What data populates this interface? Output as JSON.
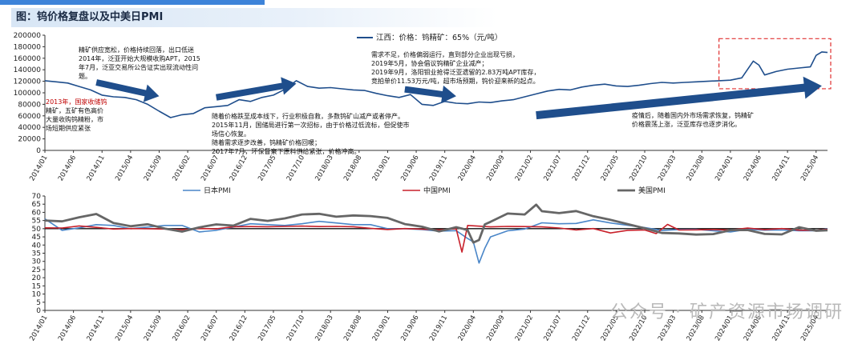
{
  "figure_title": "图：钨价格复盘以及中美日PMI",
  "watermark": "公众号 · 矿产资源市场调研",
  "chart_data": [
    {
      "type": "line",
      "legend": "江西：价格：钨精矿：65%（元/吨）",
      "legend_placement": "top-center",
      "ylim": [
        0,
        200000
      ],
      "yticks": [
        0,
        20000,
        40000,
        60000,
        80000,
        100000,
        120000,
        140000,
        160000,
        180000,
        200000
      ],
      "xticks": [
        "2014/01",
        "2014/06",
        "2014/11",
        "2015/04",
        "2015/09",
        "2016/02",
        "2016/07",
        "2016/12",
        "2017/05",
        "2017/10",
        "2018/03",
        "2018/08",
        "2019/01",
        "2019/06",
        "2019/11",
        "2020/04",
        "2020/09",
        "2021/02",
        "2021/07",
        "2021/12",
        "2022/05",
        "2022/10",
        "2023/03",
        "2023/08",
        "2024/01",
        "2024/06",
        "2024/11",
        "2025/04"
      ],
      "color": "#1f4e8c",
      "points": [
        [
          "2014/01",
          121000
        ],
        [
          "2014/03",
          119000
        ],
        [
          "2014/05",
          117000
        ],
        [
          "2014/07",
          111000
        ],
        [
          "2014/09",
          105000
        ],
        [
          "2014/11",
          96000
        ],
        [
          "2015/01",
          93000
        ],
        [
          "2015/03",
          92000
        ],
        [
          "2015/05",
          88000
        ],
        [
          "2015/07",
          80000
        ],
        [
          "2015/09",
          68000
        ],
        [
          "2015/11",
          57000
        ],
        [
          "2016/01",
          62000
        ],
        [
          "2016/03",
          64000
        ],
        [
          "2016/05",
          74000
        ],
        [
          "2016/07",
          76000
        ],
        [
          "2016/09",
          78000
        ],
        [
          "2016/11",
          88000
        ],
        [
          "2017/01",
          85000
        ],
        [
          "2017/03",
          92000
        ],
        [
          "2017/05",
          96000
        ],
        [
          "2017/07",
          106000
        ],
        [
          "2017/09",
          121000
        ],
        [
          "2017/11",
          111000
        ],
        [
          "2018/01",
          108000
        ],
        [
          "2018/03",
          109000
        ],
        [
          "2018/05",
          107000
        ],
        [
          "2018/07",
          105000
        ],
        [
          "2018/09",
          104000
        ],
        [
          "2018/11",
          99000
        ],
        [
          "2019/01",
          95000
        ],
        [
          "2019/03",
          92000
        ],
        [
          "2019/05",
          97000
        ],
        [
          "2019/07",
          80000
        ],
        [
          "2019/09",
          78000
        ],
        [
          "2019/11",
          85000
        ],
        [
          "2020/01",
          82000
        ],
        [
          "2020/03",
          81000
        ],
        [
          "2020/05",
          84000
        ],
        [
          "2020/07",
          83000
        ],
        [
          "2020/09",
          86000
        ],
        [
          "2020/11",
          88000
        ],
        [
          "2021/01",
          93000
        ],
        [
          "2021/03",
          98000
        ],
        [
          "2021/05",
          103000
        ],
        [
          "2021/07",
          106000
        ],
        [
          "2021/09",
          105000
        ],
        [
          "2021/11",
          110000
        ],
        [
          "2022/01",
          113000
        ],
        [
          "2022/03",
          115000
        ],
        [
          "2022/05",
          112000
        ],
        [
          "2022/07",
          111000
        ],
        [
          "2022/09",
          113000
        ],
        [
          "2022/11",
          116000
        ],
        [
          "2023/01",
          118000
        ],
        [
          "2023/03",
          117000
        ],
        [
          "2023/05",
          118000
        ],
        [
          "2023/07",
          119000
        ],
        [
          "2023/09",
          120000
        ],
        [
          "2023/11",
          121000
        ],
        [
          "2024/01",
          122000
        ],
        [
          "2024/03",
          126000
        ],
        [
          "2024/05",
          155000
        ],
        [
          "2024/06",
          148000
        ],
        [
          "2024/07",
          131000
        ],
        [
          "2024/09",
          137000
        ],
        [
          "2024/11",
          141000
        ],
        [
          "2025/01",
          143000
        ],
        [
          "2025/03",
          145000
        ],
        [
          "2025/04",
          165000
        ],
        [
          "2025/05",
          171000
        ],
        [
          "2025/06",
          170000
        ]
      ]
    },
    {
      "type": "line",
      "ylim": [
        0,
        70
      ],
      "yticks": [
        0,
        5,
        10,
        15,
        20,
        25,
        30,
        35,
        40,
        45,
        50,
        55,
        60,
        65,
        70
      ],
      "xticks": [
        "2014/01",
        "2014/06",
        "2014/11",
        "2015/04",
        "2015/09",
        "2016/02",
        "2016/07",
        "2016/12",
        "2017/05",
        "2017/10",
        "2018/03",
        "2018/08",
        "2019/01",
        "2019/06",
        "2019/11",
        "2020/04",
        "2020/09",
        "2021/02",
        "2021/07",
        "2021/12",
        "2022/05",
        "2022/10",
        "2023/03",
        "2023/08",
        "2024/01",
        "2024/06",
        "2024/11",
        "2025/04"
      ],
      "series": [
        {
          "name": "日本PMI",
          "color": "#4a86c8",
          "points": [
            [
              "2014/01",
              56
            ],
            [
              "2014/04",
              49
            ],
            [
              "2014/07",
              50.5
            ],
            [
              "2014/10",
              52.5
            ],
            [
              "2015/01",
              52
            ],
            [
              "2015/04",
              50
            ],
            [
              "2015/07",
              51
            ],
            [
              "2015/10",
              52
            ],
            [
              "2016/01",
              52
            ],
            [
              "2016/04",
              48
            ],
            [
              "2016/07",
              49
            ],
            [
              "2016/10",
              51
            ],
            [
              "2017/01",
              53
            ],
            [
              "2017/04",
              52.5
            ],
            [
              "2017/07",
              52
            ],
            [
              "2017/10",
              53
            ],
            [
              "2018/01",
              54.5
            ],
            [
              "2018/04",
              53.5
            ],
            [
              "2018/07",
              52.5
            ],
            [
              "2018/10",
              52.5
            ],
            [
              "2019/01",
              50
            ],
            [
              "2019/04",
              50
            ],
            [
              "2019/07",
              49.5
            ],
            [
              "2019/10",
              48.5
            ],
            [
              "2020/01",
              48.8
            ],
            [
              "2020/03",
              44
            ],
            [
              "2020/04",
              41.9
            ],
            [
              "2020/05",
              29
            ],
            [
              "2020/06",
              38
            ],
            [
              "2020/07",
              45
            ],
            [
              "2020/10",
              48.7
            ],
            [
              "2021/01",
              49.8
            ],
            [
              "2021/04",
              53.6
            ],
            [
              "2021/07",
              53
            ],
            [
              "2021/10",
              53.2
            ],
            [
              "2022/01",
              55.4
            ],
            [
              "2022/04",
              53.5
            ],
            [
              "2022/07",
              52.1
            ],
            [
              "2022/10",
              50.7
            ],
            [
              "2023/01",
              48.9
            ],
            [
              "2023/04",
              49.5
            ],
            [
              "2023/07",
              49.6
            ],
            [
              "2023/10",
              48.7
            ],
            [
              "2024/01",
              48
            ],
            [
              "2024/04",
              49.6
            ],
            [
              "2024/07",
              49.1
            ],
            [
              "2024/10",
              49.2
            ],
            [
              "2025/01",
              48.7
            ],
            [
              "2025/04",
              48.7
            ],
            [
              "2025/06",
              50
            ]
          ]
        },
        {
          "name": "中国PMI",
          "color": "#c8202a",
          "points": [
            [
              "2014/01",
              50.5
            ],
            [
              "2014/04",
              50.4
            ],
            [
              "2014/07",
              51.7
            ],
            [
              "2014/10",
              50.8
            ],
            [
              "2015/01",
              49.8
            ],
            [
              "2015/04",
              50.1
            ],
            [
              "2015/07",
              50
            ],
            [
              "2015/10",
              49.8
            ],
            [
              "2016/01",
              49.4
            ],
            [
              "2016/04",
              50.1
            ],
            [
              "2016/07",
              49.9
            ],
            [
              "2016/10",
              51.2
            ],
            [
              "2017/01",
              51.3
            ],
            [
              "2017/04",
              51.2
            ],
            [
              "2017/07",
              51.4
            ],
            [
              "2017/10",
              51.6
            ],
            [
              "2018/01",
              51.3
            ],
            [
              "2018/04",
              51.4
            ],
            [
              "2018/07",
              51.2
            ],
            [
              "2018/10",
              50.2
            ],
            [
              "2019/01",
              49.5
            ],
            [
              "2019/04",
              50.1
            ],
            [
              "2019/07",
              49.7
            ],
            [
              "2019/10",
              49.3
            ],
            [
              "2020/01",
              50
            ],
            [
              "2020/02",
              35.7
            ],
            [
              "2020/03",
              52
            ],
            [
              "2020/07",
              51.1
            ],
            [
              "2020/10",
              51.4
            ],
            [
              "2021/01",
              51.3
            ],
            [
              "2021/04",
              51.1
            ],
            [
              "2021/07",
              50.4
            ],
            [
              "2021/10",
              49.2
            ],
            [
              "2022/01",
              50.1
            ],
            [
              "2022/04",
              47.4
            ],
            [
              "2022/07",
              49
            ],
            [
              "2022/10",
              49.2
            ],
            [
              "2022/12",
              47
            ],
            [
              "2023/02",
              52.6
            ],
            [
              "2023/04",
              49.2
            ],
            [
              "2023/07",
              49.3
            ],
            [
              "2023/10",
              49.5
            ],
            [
              "2024/01",
              49.2
            ],
            [
              "2024/04",
              50.4
            ],
            [
              "2024/07",
              49.4
            ],
            [
              "2024/10",
              50.1
            ],
            [
              "2025/01",
              49.1
            ],
            [
              "2025/04",
              49
            ],
            [
              "2025/06",
              49.7
            ]
          ]
        },
        {
          "name": "美国PMI",
          "color": "#666666",
          "points": [
            [
              "2014/01",
              55
            ],
            [
              "2014/04",
              54.5
            ],
            [
              "2014/07",
              57
            ],
            [
              "2014/10",
              59
            ],
            [
              "2015/01",
              53.5
            ],
            [
              "2015/04",
              51.5
            ],
            [
              "2015/07",
              52.7
            ],
            [
              "2015/10",
              50.1
            ],
            [
              "2016/01",
              48.2
            ],
            [
              "2016/04",
              50.8
            ],
            [
              "2016/07",
              52.6
            ],
            [
              "2016/10",
              51.9
            ],
            [
              "2017/01",
              56
            ],
            [
              "2017/04",
              54.8
            ],
            [
              "2017/07",
              56.3
            ],
            [
              "2017/10",
              58.7
            ],
            [
              "2018/01",
              59.1
            ],
            [
              "2018/04",
              57.3
            ],
            [
              "2018/07",
              58.1
            ],
            [
              "2018/10",
              57.7
            ],
            [
              "2019/01",
              56.6
            ],
            [
              "2019/04",
              52.8
            ],
            [
              "2019/07",
              51.2
            ],
            [
              "2019/10",
              48.3
            ],
            [
              "2020/01",
              50.9
            ],
            [
              "2020/02",
              50.1
            ],
            [
              "2020/03",
              49.1
            ],
            [
              "2020/04",
              41.5
            ],
            [
              "2020/05",
              43.1
            ],
            [
              "2020/06",
              52.6
            ],
            [
              "2020/07",
              54.2
            ],
            [
              "2020/10",
              59.3
            ],
            [
              "2021/01",
              58.7
            ],
            [
              "2021/03",
              64.7
            ],
            [
              "2021/04",
              60.7
            ],
            [
              "2021/07",
              59.5
            ],
            [
              "2021/10",
              60.8
            ],
            [
              "2022/01",
              57.6
            ],
            [
              "2022/04",
              55.4
            ],
            [
              "2022/07",
              52.8
            ],
            [
              "2022/10",
              50.2
            ],
            [
              "2023/01",
              47.4
            ],
            [
              "2023/04",
              47.1
            ],
            [
              "2023/07",
              46.4
            ],
            [
              "2023/10",
              46.7
            ],
            [
              "2024/01",
              49.1
            ],
            [
              "2024/04",
              49.2
            ],
            [
              "2024/07",
              46.8
            ],
            [
              "2024/10",
              46.5
            ],
            [
              "2025/01",
              50.9
            ],
            [
              "2025/04",
              48.7
            ],
            [
              "2025/06",
              49
            ]
          ]
        }
      ],
      "reference_line": 50
    }
  ],
  "annotations": [
    {
      "id": "ann-2014",
      "lines": [
        "精矿供应宽松，价格持续回落，出口低迷",
        "2014年，泛亚开始大规模收购APT，2015",
        "年7月，泛亚交易所公告证实出现流动性问",
        "题。"
      ]
    },
    {
      "id": "ann-2013-red",
      "lines": [
        "2013年，国家收储钨"
      ],
      "color": "#c00000"
    },
    {
      "id": "ann-2013-black",
      "lines": [
        "精矿，五矿有色高价",
        "大量收购钨精粉，市",
        "场短期供应紧张"
      ]
    },
    {
      "id": "ann-2016",
      "lines": [
        "随着价格跌至成本线下，行业积极自救，多数钨矿山减产或者停产。",
        "2015年11月，国储局进行第一次招标，由于价格过低流标，但促使市",
        "场信心恢复。",
        "随着需求逐步改善，钨精矿价格回暖；",
        "2017年7月，环保督察下原料供给紧张，价格冲高。"
      ]
    },
    {
      "id": "ann-2019",
      "lines": [
        "需求不足，价格偏弱运行，直到部分企业出现亏损，",
        "2019年5月，协会倡议钨精矿企业减产；",
        "2019年9月，洛阳钼业抢得泛亚遗留的2.83万吨APT库存，",
        "竞拍单价11.53万元/吨，超市场预期，钨价迎来新的起点。"
      ]
    },
    {
      "id": "ann-2023",
      "lines": [
        "疫情后，随着国内外市场需求恢复，钨精矿",
        "价格震荡上涨，泛亚库存也逐步消化。"
      ]
    }
  ]
}
